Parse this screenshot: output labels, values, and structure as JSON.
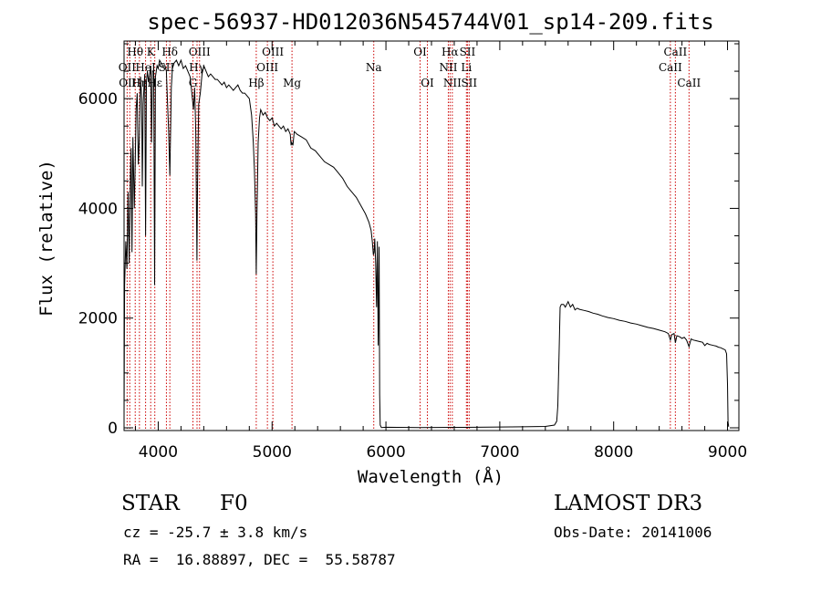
{
  "chart_data": {
    "type": "line",
    "title": "spec-56937-HD012036N545744V01_sp14-209.fits",
    "xlabel": "Wavelength (Å)",
    "ylabel": "Flux (relative)",
    "xlim": [
      3700,
      9100
    ],
    "ylim": [
      -50,
      7050
    ],
    "xticks": [
      4000,
      5000,
      6000,
      7000,
      8000,
      9000
    ],
    "yticks": [
      0,
      2000,
      4000,
      6000
    ],
    "series": [
      {
        "name": "spectrum",
        "color": "#000000",
        "points": [
          [
            3700,
            200
          ],
          [
            3705,
            2600
          ],
          [
            3715,
            3400
          ],
          [
            3725,
            2900
          ],
          [
            3735,
            4300
          ],
          [
            3745,
            3000
          ],
          [
            3755,
            4500
          ],
          [
            3762,
            5100
          ],
          [
            3770,
            3200
          ],
          [
            3778,
            5300
          ],
          [
            3790,
            4000
          ],
          [
            3798,
            4800
          ],
          [
            3806,
            5800
          ],
          [
            3815,
            6100
          ],
          [
            3825,
            4800
          ],
          [
            3835,
            5300
          ],
          [
            3845,
            6400
          ],
          [
            3855,
            6000
          ],
          [
            3860,
            4400
          ],
          [
            3868,
            5900
          ],
          [
            3875,
            6200
          ],
          [
            3882,
            6450
          ],
          [
            3889,
            3500
          ],
          [
            3896,
            6300
          ],
          [
            3905,
            6500
          ],
          [
            3915,
            6300
          ],
          [
            3925,
            6450
          ],
          [
            3935,
            6600
          ],
          [
            3941,
            5200
          ],
          [
            3950,
            6500
          ],
          [
            3960,
            6500
          ],
          [
            3968,
            2600
          ],
          [
            3976,
            6400
          ],
          [
            3990,
            6600
          ],
          [
            4000,
            6550
          ],
          [
            4012,
            6700
          ],
          [
            4025,
            6650
          ],
          [
            4040,
            6600
          ],
          [
            4060,
            6600
          ],
          [
            4072,
            6500
          ],
          [
            4082,
            5900
          ],
          [
            4092,
            5400
          ],
          [
            4102,
            4600
          ],
          [
            4108,
            5300
          ],
          [
            4115,
            6200
          ],
          [
            4125,
            6550
          ],
          [
            4140,
            6650
          ],
          [
            4160,
            6700
          ],
          [
            4180,
            6600
          ],
          [
            4200,
            6700
          ],
          [
            4220,
            6550
          ],
          [
            4240,
            6600
          ],
          [
            4260,
            6500
          ],
          [
            4280,
            6400
          ],
          [
            4300,
            6000
          ],
          [
            4310,
            5800
          ],
          [
            4320,
            6200
          ],
          [
            4330,
            5400
          ],
          [
            4340,
            3050
          ],
          [
            4346,
            4500
          ],
          [
            4355,
            5900
          ],
          [
            4370,
            6100
          ],
          [
            4385,
            6450
          ],
          [
            4400,
            6600
          ],
          [
            4420,
            6500
          ],
          [
            4440,
            6400
          ],
          [
            4460,
            6450
          ],
          [
            4480,
            6400
          ],
          [
            4500,
            6350
          ],
          [
            4520,
            6350
          ],
          [
            4540,
            6300
          ],
          [
            4560,
            6250
          ],
          [
            4580,
            6300
          ],
          [
            4600,
            6200
          ],
          [
            4620,
            6250
          ],
          [
            4640,
            6200
          ],
          [
            4660,
            6150
          ],
          [
            4680,
            6200
          ],
          [
            4700,
            6250
          ],
          [
            4720,
            6150
          ],
          [
            4740,
            6100
          ],
          [
            4760,
            6100
          ],
          [
            4780,
            6050
          ],
          [
            4800,
            6000
          ],
          [
            4820,
            5700
          ],
          [
            4835,
            5200
          ],
          [
            4845,
            4700
          ],
          [
            4855,
            3900
          ],
          [
            4861,
            2800
          ],
          [
            4867,
            3900
          ],
          [
            4878,
            5200
          ],
          [
            4890,
            5650
          ],
          [
            4900,
            5800
          ],
          [
            4920,
            5700
          ],
          [
            4940,
            5750
          ],
          [
            4960,
            5650
          ],
          [
            4980,
            5600
          ],
          [
            5000,
            5650
          ],
          [
            5020,
            5500
          ],
          [
            5040,
            5550
          ],
          [
            5060,
            5500
          ],
          [
            5080,
            5450
          ],
          [
            5100,
            5500
          ],
          [
            5120,
            5400
          ],
          [
            5140,
            5450
          ],
          [
            5160,
            5350
          ],
          [
            5167,
            5150
          ],
          [
            5173,
            5200
          ],
          [
            5183,
            5150
          ],
          [
            5195,
            5400
          ],
          [
            5220,
            5350
          ],
          [
            5260,
            5300
          ],
          [
            5300,
            5250
          ],
          [
            5340,
            5100
          ],
          [
            5380,
            5050
          ],
          [
            5420,
            4950
          ],
          [
            5460,
            4850
          ],
          [
            5500,
            4800
          ],
          [
            5540,
            4750
          ],
          [
            5580,
            4650
          ],
          [
            5620,
            4550
          ],
          [
            5660,
            4400
          ],
          [
            5700,
            4300
          ],
          [
            5740,
            4200
          ],
          [
            5780,
            4050
          ],
          [
            5820,
            3900
          ],
          [
            5850,
            3750
          ],
          [
            5870,
            3600
          ],
          [
            5880,
            3400
          ],
          [
            5890,
            3150
          ],
          [
            5896,
            3200
          ],
          [
            5902,
            3450
          ],
          [
            5910,
            3000
          ],
          [
            5918,
            2200
          ],
          [
            5925,
            3400
          ],
          [
            5932,
            1500
          ],
          [
            5940,
            3300
          ],
          [
            5945,
            600
          ],
          [
            5950,
            50
          ],
          [
            5960,
            5
          ],
          [
            6000,
            10
          ],
          [
            6300,
            5
          ],
          [
            6600,
            8
          ],
          [
            6900,
            12
          ],
          [
            7200,
            18
          ],
          [
            7400,
            25
          ],
          [
            7480,
            50
          ],
          [
            7500,
            120
          ],
          [
            7510,
            400
          ],
          [
            7520,
            1300
          ],
          [
            7530,
            2200
          ],
          [
            7540,
            2250
          ],
          [
            7560,
            2250
          ],
          [
            7575,
            2200
          ],
          [
            7600,
            2300
          ],
          [
            7620,
            2200
          ],
          [
            7640,
            2250
          ],
          [
            7660,
            2150
          ],
          [
            7680,
            2180
          ],
          [
            7700,
            2160
          ],
          [
            7740,
            2140
          ],
          [
            7780,
            2120
          ],
          [
            7820,
            2090
          ],
          [
            7860,
            2070
          ],
          [
            7900,
            2040
          ],
          [
            7950,
            2010
          ],
          [
            8000,
            1990
          ],
          [
            8050,
            1960
          ],
          [
            8100,
            1940
          ],
          [
            8150,
            1910
          ],
          [
            8200,
            1890
          ],
          [
            8250,
            1860
          ],
          [
            8300,
            1830
          ],
          [
            8350,
            1810
          ],
          [
            8400,
            1780
          ],
          [
            8450,
            1750
          ],
          [
            8480,
            1720
          ],
          [
            8498,
            1600
          ],
          [
            8510,
            1700
          ],
          [
            8530,
            1720
          ],
          [
            8542,
            1550
          ],
          [
            8555,
            1680
          ],
          [
            8580,
            1660
          ],
          [
            8600,
            1630
          ],
          [
            8620,
            1650
          ],
          [
            8640,
            1600
          ],
          [
            8662,
            1480
          ],
          [
            8680,
            1620
          ],
          [
            8700,
            1600
          ],
          [
            8720,
            1590
          ],
          [
            8740,
            1580
          ],
          [
            8760,
            1570
          ],
          [
            8780,
            1560
          ],
          [
            8800,
            1500
          ],
          [
            8820,
            1540
          ],
          [
            8840,
            1520
          ],
          [
            8860,
            1510
          ],
          [
            8880,
            1500
          ],
          [
            8900,
            1490
          ],
          [
            8920,
            1470
          ],
          [
            8940,
            1460
          ],
          [
            8960,
            1440
          ],
          [
            8980,
            1420
          ],
          [
            8992,
            1350
          ],
          [
            9000,
            800
          ],
          [
            9005,
            100
          ],
          [
            9010,
            20
          ]
        ]
      }
    ],
    "line_markers": [
      {
        "label": "Hθ",
        "wl": 3798,
        "row": 0
      },
      {
        "label": "OII",
        "wl": 3727,
        "row": 1
      },
      {
        "label": "OIII",
        "wl": 3750,
        "row": 2
      },
      {
        "label": "K",
        "wl": 3934,
        "row": 0
      },
      {
        "label": "HeI",
        "wl": 3889,
        "row": 1
      },
      {
        "label": "Hη",
        "wl": 3835,
        "row": 2
      },
      {
        "label": "Hε",
        "wl": 3970,
        "row": 2
      },
      {
        "label": "Hδ",
        "wl": 4102,
        "row": 0
      },
      {
        "label": "SII",
        "wl": 4072,
        "row": 1
      },
      {
        "label": "OIII",
        "wl": 4363,
        "row": 0
      },
      {
        "label": "Hγ",
        "wl": 4341,
        "row": 1
      },
      {
        "label": "G",
        "wl": 4305,
        "row": 2
      },
      {
        "label": "Hβ",
        "wl": 4861,
        "row": 2
      },
      {
        "label": "OIII",
        "wl": 5007,
        "row": 0
      },
      {
        "label": "OIII",
        "wl": 4959,
        "row": 1
      },
      {
        "label": "Mg",
        "wl": 5175,
        "row": 2
      },
      {
        "label": "Na",
        "wl": 5893,
        "row": 1
      },
      {
        "label": "OI",
        "wl": 6300,
        "row": 0
      },
      {
        "label": "OI",
        "wl": 6364,
        "row": 2
      },
      {
        "label": "Hα",
        "wl": 6563,
        "row": 0
      },
      {
        "label": "NII",
        "wl": 6548,
        "row": 1
      },
      {
        "label": "NII",
        "wl": 6583,
        "row": 2
      },
      {
        "label": "SII",
        "wl": 6716,
        "row": 0
      },
      {
        "label": "Li",
        "wl": 6707,
        "row": 1
      },
      {
        "label": "SII",
        "wl": 6731,
        "row": 2
      },
      {
        "label": "CaII",
        "wl": 8542,
        "row": 0
      },
      {
        "label": "CaII",
        "wl": 8498,
        "row": 1
      },
      {
        "label": "CaII",
        "wl": 8662,
        "row": 2
      }
    ],
    "marker_color": "#cc0000",
    "axis_color": "#000000"
  },
  "info": {
    "object_class": "STAR",
    "subclass": "F0",
    "survey": "LAMOST DR3",
    "cz": "cz = -25.7 ± 3.8 km/s",
    "obs_date": "Obs-Date: 20141006",
    "coords": "RA =  16.88897, DEC =  55.58787"
  }
}
